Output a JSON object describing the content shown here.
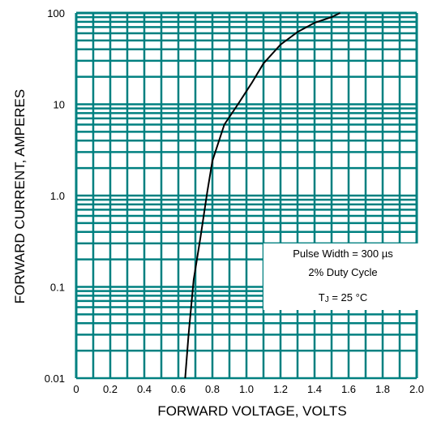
{
  "chart_data": {
    "type": "line",
    "xlabel": "FORWARD VOLTAGE, VOLTS",
    "ylabel": "FORWARD CURRENT, AMPERES",
    "x_scale": "linear",
    "y_scale": "log",
    "xlim": [
      0,
      2.0
    ],
    "ylim": [
      0.01,
      100
    ],
    "x_ticks": [
      "0",
      "0.2",
      "0.4",
      "0.6",
      "0.8",
      "1.0",
      "1.2",
      "1.4",
      "1.6",
      "1.8",
      "2.0"
    ],
    "y_ticks": [
      "0.01",
      "0.1",
      "1.0",
      "10",
      "100"
    ],
    "grid": true,
    "grid_color": "#008080",
    "line_color": "#000000",
    "series": [
      {
        "x": [
          0.64,
          0.66,
          0.69,
          0.73,
          0.77,
          0.8,
          0.87,
          0.95,
          1.03,
          1.1,
          1.2,
          1.3,
          1.4,
          1.5,
          1.55
        ],
        "y": [
          0.01,
          0.03,
          0.12,
          0.35,
          1.1,
          2.4,
          6.0,
          10,
          17,
          28,
          45,
          62,
          78,
          90,
          100
        ]
      }
    ],
    "annotations": {
      "line1": "Pulse Width = 300 µs",
      "line2": "2% Duty Cycle",
      "line3_prefix": "T",
      "line3_sub": "J",
      "line3_suffix": " = 25 °C"
    }
  }
}
